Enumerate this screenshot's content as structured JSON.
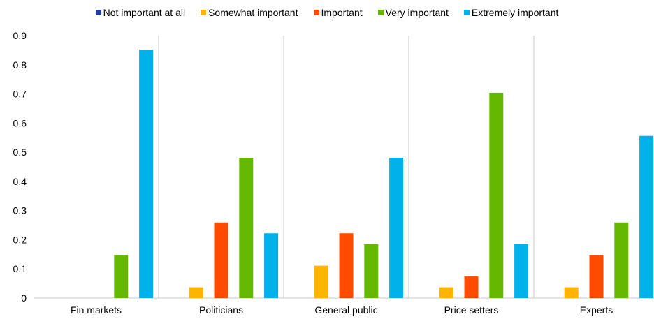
{
  "chart_data": {
    "type": "bar",
    "title": "",
    "xlabel": "",
    "ylabel": "",
    "categories": [
      "Fin markets",
      "Politicians",
      "General public",
      "Price setters",
      "Experts"
    ],
    "ylim": [
      0,
      0.9
    ],
    "yticks": [
      "0",
      "0.1",
      "0.2",
      "0.3",
      "0.4",
      "0.5",
      "0.6",
      "0.7",
      "0.8",
      "0.9"
    ],
    "legend_position": "top",
    "grid": "vertical category separators",
    "series": [
      {
        "name": "Not important at all",
        "color": "#1f3f9a",
        "values": [
          0,
          0,
          0,
          0,
          0
        ]
      },
      {
        "name": "Somewhat important",
        "color": "#ffb400",
        "values": [
          0,
          0.037,
          0.111,
          0.037,
          0.037
        ]
      },
      {
        "name": "Important",
        "color": "#ff4b00",
        "values": [
          0,
          0.259,
          0.222,
          0.074,
          0.148
        ]
      },
      {
        "name": "Very important",
        "color": "#65b800",
        "values": [
          0.148,
          0.481,
          0.185,
          0.704,
          0.259
        ]
      },
      {
        "name": "Extremely important",
        "color": "#00b1ea",
        "values": [
          0.852,
          0.222,
          0.481,
          0.185,
          0.556
        ]
      }
    ]
  }
}
